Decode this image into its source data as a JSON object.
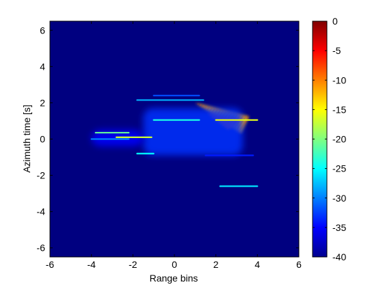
{
  "chart_data": {
    "type": "heatmap",
    "xlabel": "Range bins",
    "ylabel": "Azimuth time [s]",
    "xlim": [
      -6,
      6
    ],
    "ylim": [
      -6.5,
      6.5
    ],
    "xticks": [
      -6,
      -4,
      -2,
      0,
      2,
      4,
      6
    ],
    "yticks": [
      -6,
      -4,
      -2,
      0,
      2,
      4,
      6
    ],
    "colorbar": {
      "ticks": [
        0,
        -5,
        -10,
        -15,
        -20,
        -25,
        -30,
        -35,
        -40
      ],
      "clim": [
        -40,
        0
      ],
      "colormap": "jet"
    },
    "background_value": -40,
    "features": [
      {
        "name": "dense-diagonal-band",
        "kind": "triangle",
        "points": [
          [
            1.0,
            2.0
          ],
          [
            3.6,
            1.25
          ],
          [
            3.2,
            0.3
          ]
        ],
        "value": -12
      },
      {
        "name": "band-core",
        "kind": "triangle",
        "points": [
          [
            1.6,
            1.4
          ],
          [
            3.2,
            1.1
          ],
          [
            2.6,
            0.5
          ]
        ],
        "value": -8
      },
      {
        "name": "echo-cloud",
        "kind": "region",
        "x": [
          -1.5,
          3.3
        ],
        "y": [
          -0.9,
          1.7
        ],
        "value": -33
      },
      {
        "name": "left-tail-cloud",
        "kind": "region",
        "x": [
          -4.0,
          -1.5
        ],
        "y": [
          -0.4,
          0.5
        ],
        "value": -35
      },
      {
        "name": "bright-streak-right",
        "kind": "streak",
        "x": [
          2.0,
          4.0
        ],
        "y": 1.05,
        "value": -16
      },
      {
        "name": "streak-mid-upper",
        "kind": "streak",
        "x": [
          -1.0,
          1.2
        ],
        "y": 1.05,
        "value": -24
      },
      {
        "name": "streak-left",
        "kind": "streak",
        "x": [
          -3.8,
          -2.2
        ],
        "y": 0.35,
        "value": -21
      },
      {
        "name": "streak-left-lower",
        "kind": "streak",
        "x": [
          -2.8,
          -1.1
        ],
        "y": 0.1,
        "value": -17
      },
      {
        "name": "streak-left-faint",
        "kind": "streak",
        "x": [
          -4.0,
          -2.2
        ],
        "y": 0.0,
        "value": -30
      },
      {
        "name": "streak-top",
        "kind": "streak",
        "x": [
          -1.8,
          1.4
        ],
        "y": 2.15,
        "value": -28
      },
      {
        "name": "streak-top-faint",
        "kind": "streak",
        "x": [
          -1.0,
          1.2
        ],
        "y": 2.4,
        "value": -32
      },
      {
        "name": "streak-right-lower",
        "kind": "streak",
        "x": [
          2.2,
          4.0
        ],
        "y": -2.6,
        "value": -26
      },
      {
        "name": "blob-left",
        "kind": "streak",
        "x": [
          -1.8,
          -1.0
        ],
        "y": -0.8,
        "value": -25
      },
      {
        "name": "streak-lower-right",
        "kind": "streak",
        "x": [
          1.5,
          3.8
        ],
        "y": -0.9,
        "value": -34
      }
    ]
  }
}
